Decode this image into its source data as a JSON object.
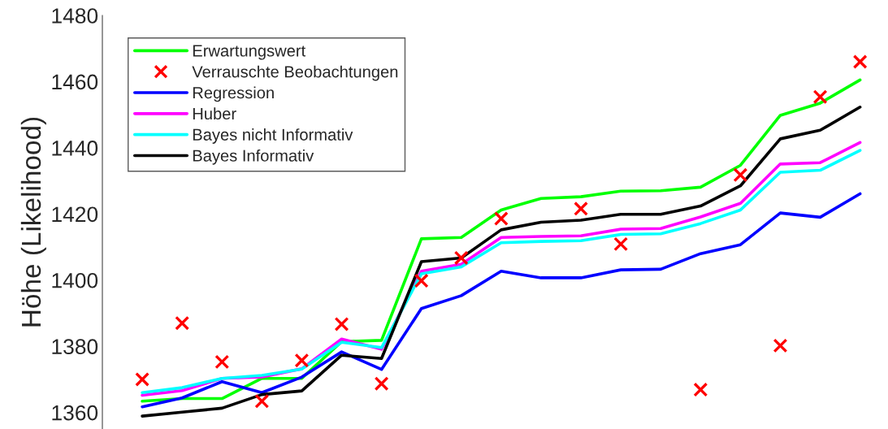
{
  "chart_data": {
    "type": "line",
    "ylabel": "Höhe (Likelihood)",
    "categories": [
      null,
      null,
      null,
      null,
      null,
      null,
      null,
      null,
      null,
      null,
      null,
      null,
      null,
      null,
      null,
      null,
      null,
      null,
      null
    ],
    "ylim": [
      1355,
      1480
    ],
    "yticks": [
      1360,
      1380,
      1400,
      1420,
      1440,
      1460,
      1480
    ],
    "grid": false,
    "legend": "top left",
    "tick_labels": "y",
    "series": [
      {
        "name": "Erwartungswert",
        "color": "#00ff00",
        "values": [
          1363.4,
          1364.2,
          1364.2,
          1370.3,
          1370.3,
          1381.4,
          1381.8,
          1412.5,
          1412.9,
          1421.2,
          1424.7,
          1425.2,
          1426.9,
          1427.0,
          1428.1,
          1434.7,
          1449.8,
          1453.5,
          1460.5
        ]
      },
      {
        "name": "Verrauschte Beobachtungen",
        "type": "scatter",
        "marker": "cross",
        "color": "#ff0000",
        "values": [
          1370,
          1387,
          1375.3,
          1363.4,
          1375.7,
          1386.7,
          1368.7,
          1399.8,
          1406.7,
          1418.6,
          null,
          1421.6,
          1410.9,
          null,
          1366.9,
          1431.8,
          1380.2,
          1455.4,
          1466
        ]
      },
      {
        "name": "Regression",
        "color": "#0000ff",
        "values": [
          1361.7,
          1364.4,
          1369.3,
          1366.0,
          1370.7,
          1378.3,
          1373.0,
          1391.4,
          1395.3,
          1402.7,
          1400.7,
          1400.7,
          1403.1,
          1403.3,
          1408.0,
          1410.7,
          1420.3,
          1419.0,
          1426.1
        ]
      },
      {
        "name": "Huber",
        "color": "#ff00ff",
        "values": [
          1365.2,
          1366.6,
          1370.3,
          1370.7,
          1373.2,
          1382.2,
          1379.1,
          1402.7,
          1404.8,
          1412.9,
          1413.2,
          1413.4,
          1415.4,
          1415.6,
          1419.1,
          1423.2,
          1435.1,
          1435.5,
          1441.6
        ]
      },
      {
        "name": "Bayes nicht Informativ",
        "color": "#00ffff",
        "values": [
          1366.0,
          1367.5,
          1370.3,
          1371.2,
          1373.1,
          1381.2,
          1379.6,
          1401.9,
          1404.0,
          1411.3,
          1411.7,
          1411.9,
          1413.8,
          1414.0,
          1417.1,
          1421.2,
          1432.6,
          1433.2,
          1439.2
        ]
      },
      {
        "name": "Bayes Informativ",
        "color": "#000000",
        "values": [
          1358.9,
          1360.1,
          1361.3,
          1365.4,
          1366.5,
          1377.3,
          1376.3,
          1405.6,
          1406.7,
          1415.2,
          1417.5,
          1418.1,
          1419.9,
          1419.9,
          1422.4,
          1428.5,
          1442.7,
          1445.3,
          1452.3
        ]
      }
    ]
  }
}
